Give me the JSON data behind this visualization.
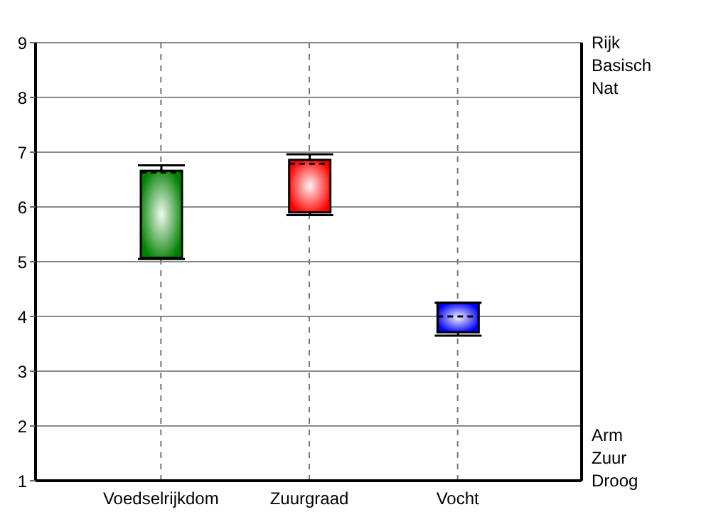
{
  "chart_data": {
    "type": "box",
    "categories": [
      "Voedselrijkdom",
      "Zuurgraad",
      "Vocht"
    ],
    "colors": [
      "#008000",
      "#ff0000",
      "#0000ff"
    ],
    "boxes": [
      {
        "low": 5.05,
        "q1": 5.07,
        "median": 6.63,
        "q3": 6.66,
        "high": 6.76
      },
      {
        "low": 5.85,
        "q1": 5.9,
        "median": 6.79,
        "q3": 6.86,
        "high": 6.96
      },
      {
        "low": 3.65,
        "q1": 3.71,
        "median": 4.0,
        "q3": 4.25,
        "high": 4.25
      }
    ],
    "ylim": [
      1,
      9
    ],
    "yticks": [
      1,
      2,
      3,
      4,
      5,
      6,
      7,
      8,
      9
    ],
    "annotations": [
      "Rijk",
      "Basisch",
      "Nat",
      "Arm",
      "Zuur",
      "Droog"
    ],
    "grid": true
  }
}
